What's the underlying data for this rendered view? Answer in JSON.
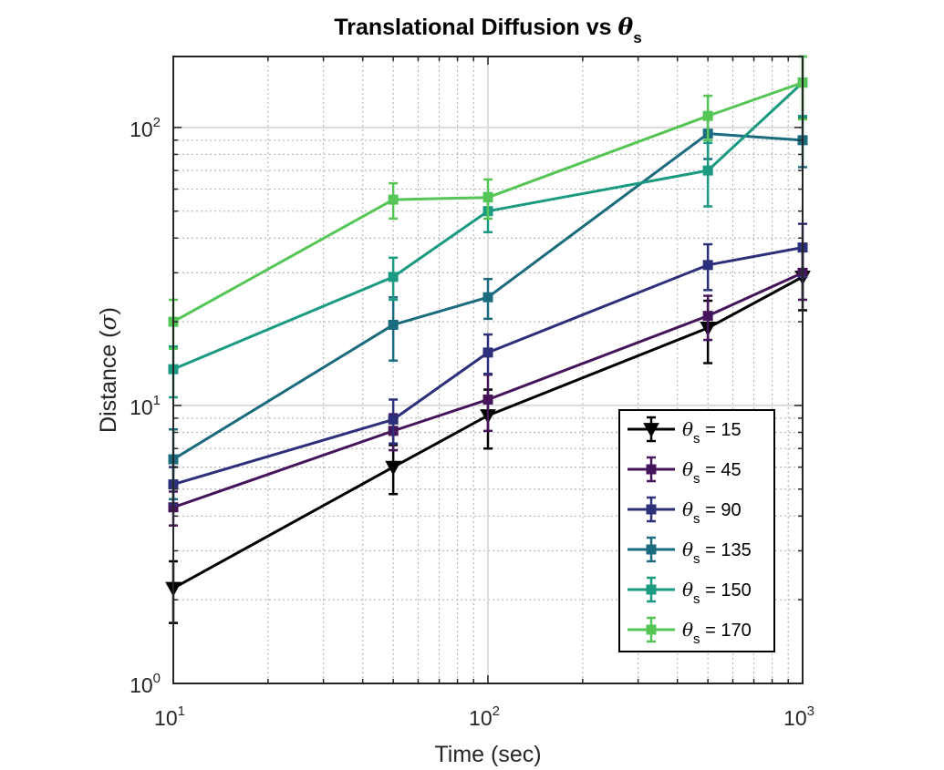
{
  "chart_data": {
    "type": "line",
    "title": {
      "prefix": "Translational Diffusion vs ",
      "symbol": "θ",
      "subscript": "s"
    },
    "xlabel": "Time (sec)",
    "ylabel": {
      "prefix": "Distance (",
      "symbol": "σ",
      "suffix": ")"
    },
    "xscale": "log",
    "yscale": "log",
    "xlim": [
      10,
      1000
    ],
    "ylim": [
      1,
      180
    ],
    "xticks": [
      {
        "value": 10,
        "base": "10",
        "exp": "1"
      },
      {
        "value": 100,
        "base": "10",
        "exp": "2"
      },
      {
        "value": 1000,
        "base": "10",
        "exp": "3"
      }
    ],
    "yticks": [
      {
        "value": 1,
        "base": "10",
        "exp": "0"
      },
      {
        "value": 10,
        "base": "10",
        "exp": "1"
      },
      {
        "value": 100,
        "base": "10",
        "exp": "2"
      }
    ],
    "grid": true,
    "minor_grid": true,
    "legend_position": "bottom-right",
    "x": [
      10,
      50,
      100,
      500,
      1000
    ],
    "series": [
      {
        "name": "15",
        "color": "#000000",
        "marker": "triangle-down",
        "values": [
          2.2,
          6.0,
          9.2,
          19,
          29
        ],
        "errors": [
          0.55,
          1.2,
          2.2,
          4.8,
          7
        ]
      },
      {
        "name": "45",
        "color": "#46145a",
        "marker": "square",
        "values": [
          4.3,
          8.1,
          10.5,
          21,
          30
        ],
        "errors": [
          0.6,
          1.2,
          2.4,
          3.8,
          6
        ]
      },
      {
        "name": "90",
        "color": "#2c2f7a",
        "marker": "square",
        "values": [
          5.2,
          8.9,
          15.5,
          32,
          37
        ],
        "errors": [
          0.8,
          1.6,
          2.5,
          6,
          8
        ]
      },
      {
        "name": "135",
        "color": "#1b6b7e",
        "marker": "square",
        "values": [
          6.4,
          19.5,
          24.5,
          95,
          90
        ],
        "errors": [
          1.8,
          5,
          4,
          18,
          18
        ]
      },
      {
        "name": "150",
        "color": "#1a9a80",
        "marker": "square",
        "values": [
          13.5,
          29,
          50,
          70,
          145
        ],
        "errors": [
          2.8,
          5,
          8,
          18,
          35
        ]
      },
      {
        "name": "170",
        "color": "#55c555",
        "marker": "square",
        "values": [
          20,
          55,
          56,
          110,
          145
        ],
        "errors": [
          4,
          8,
          9,
          20,
          38
        ]
      }
    ]
  }
}
